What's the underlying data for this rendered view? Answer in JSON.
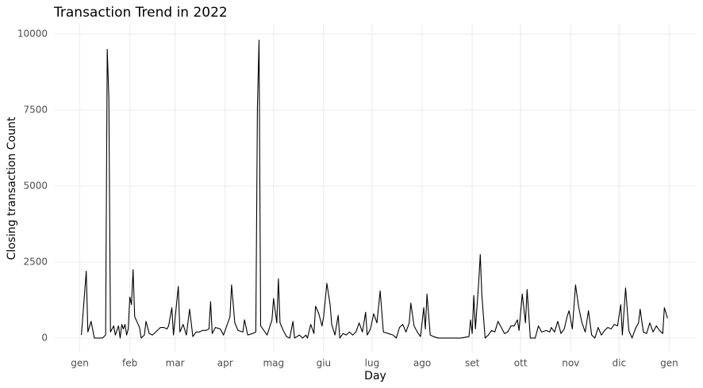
{
  "chart_data": {
    "type": "line",
    "title": "Transaction Trend in 2022",
    "x_label": "Day",
    "y_label": "Closing transaction Count",
    "x": [
      1,
      4,
      5,
      7,
      9,
      14,
      16,
      17,
      18,
      19,
      21,
      22,
      24,
      25,
      26,
      27,
      28,
      29,
      30,
      31,
      32,
      33,
      34,
      37,
      38,
      40,
      41,
      43,
      45,
      47,
      50,
      52,
      54,
      55,
      57,
      58,
      61,
      62,
      64,
      66,
      68,
      70,
      72,
      74,
      76,
      78,
      80,
      81,
      82,
      84,
      87,
      89,
      91,
      93,
      94,
      96,
      98,
      101,
      102,
      104,
      107,
      109,
      110,
      111,
      112,
      114,
      116,
      119,
      120,
      122,
      123,
      124,
      126,
      128,
      130,
      132,
      133,
      136,
      138,
      140,
      141,
      143,
      145,
      146,
      148,
      150,
      151,
      153,
      155,
      156,
      158,
      160,
      161,
      163,
      165,
      167,
      169,
      171,
      173,
      175,
      177,
      178,
      180,
      182,
      184,
      186,
      188,
      191,
      194,
      196,
      198,
      200,
      202,
      204,
      205,
      207,
      209,
      211,
      213,
      214,
      215,
      217,
      219,
      222,
      226,
      231,
      236,
      241,
      242,
      243,
      244,
      245,
      247,
      248,
      249,
      251,
      253,
      255,
      257,
      259,
      261,
      263,
      265,
      267,
      269,
      271,
      272,
      274,
      276,
      277,
      279,
      282,
      284,
      286,
      289,
      291,
      292,
      294,
      296,
      298,
      300,
      302,
      303,
      305,
      307,
      309,
      311,
      313,
      315,
      317,
      319,
      321,
      323,
      325,
      327,
      329,
      331,
      333,
      335,
      336,
      338,
      340,
      342,
      344,
      346,
      347,
      349,
      351,
      353,
      355,
      357,
      359,
      361,
      362,
      364
    ],
    "values": [
      100,
      2200,
      200,
      550,
      0,
      0,
      100,
      9500,
      7900,
      200,
      400,
      100,
      400,
      0,
      450,
      300,
      450,
      100,
      300,
      1350,
      1100,
      2250,
      700,
      350,
      0,
      100,
      550,
      150,
      100,
      200,
      350,
      350,
      300,
      400,
      1000,
      100,
      1700,
      200,
      450,
      100,
      950,
      50,
      200,
      200,
      250,
      250,
      300,
      1200,
      150,
      350,
      300,
      100,
      400,
      700,
      1750,
      500,
      250,
      200,
      600,
      100,
      150,
      200,
      7600,
      9800,
      400,
      250,
      100,
      600,
      1300,
      500,
      1950,
      500,
      250,
      50,
      0,
      550,
      0,
      100,
      0,
      100,
      0,
      450,
      150,
      1050,
      800,
      400,
      700,
      1800,
      1100,
      450,
      100,
      750,
      0,
      150,
      100,
      200,
      100,
      200,
      500,
      200,
      850,
      100,
      300,
      800,
      500,
      1550,
      200,
      150,
      100,
      0,
      350,
      450,
      200,
      500,
      1150,
      400,
      200,
      50,
      1000,
      300,
      1450,
      100,
      50,
      0,
      0,
      0,
      0,
      50,
      600,
      150,
      1400,
      300,
      1800,
      2750,
      1400,
      0,
      100,
      250,
      200,
      550,
      350,
      150,
      200,
      400,
      400,
      600,
      250,
      1450,
      500,
      1600,
      0,
      0,
      400,
      200,
      250,
      200,
      350,
      200,
      550,
      150,
      300,
      750,
      900,
      300,
      1750,
      1000,
      500,
      200,
      900,
      100,
      0,
      350,
      100,
      250,
      350,
      300,
      450,
      400,
      1100,
      100,
      1650,
      250,
      0,
      300,
      500,
      950,
      200,
      150,
      500,
      200,
      400,
      250,
      150,
      1000,
      650
    ],
    "line_color": "#000000",
    "xlim": [
      -16,
      382
    ],
    "ylim": [
      -470,
      10340
    ],
    "xticks": [
      {
        "value": 0,
        "label": "gen"
      },
      {
        "value": 31,
        "label": "feb"
      },
      {
        "value": 59,
        "label": "mar"
      },
      {
        "value": 90,
        "label": "apr"
      },
      {
        "value": 120,
        "label": "mag"
      },
      {
        "value": 151,
        "label": "giu"
      },
      {
        "value": 181,
        "label": "lug"
      },
      {
        "value": 212,
        "label": "ago"
      },
      {
        "value": 243,
        "label": "set"
      },
      {
        "value": 273,
        "label": "ott"
      },
      {
        "value": 304,
        "label": "nov"
      },
      {
        "value": 334,
        "label": "dic"
      },
      {
        "value": 365,
        "label": "gen"
      }
    ],
    "yticks": [
      0,
      2500,
      5000,
      7500,
      10000
    ],
    "grid": true
  }
}
